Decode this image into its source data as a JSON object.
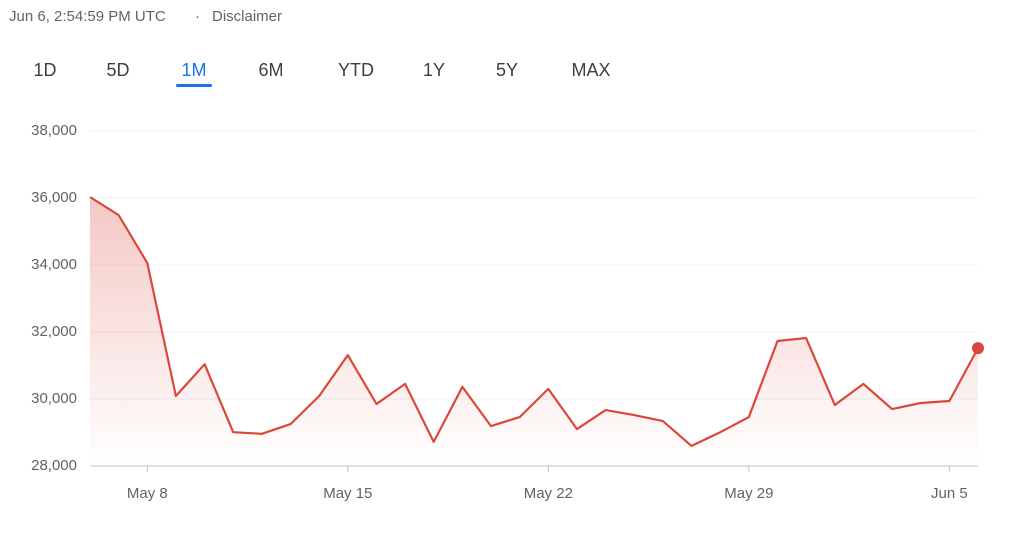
{
  "header": {
    "timestamp": "Jun 6, 2:54:59 PM UTC",
    "separator": "·",
    "disclaimer": "Disclaimer"
  },
  "ranges": {
    "options": [
      "1D",
      "5D",
      "1M",
      "6M",
      "YTD",
      "1Y",
      "5Y",
      "MAX"
    ],
    "selected_index": 2
  },
  "chart_data": {
    "type": "line",
    "color": "#d9483b",
    "x": [
      "May 6",
      "May 7",
      "May 8",
      "May 9",
      "May 10",
      "May 11",
      "May 12",
      "May 13",
      "May 14",
      "May 15",
      "May 16",
      "May 17",
      "May 18",
      "May 19",
      "May 20",
      "May 21",
      "May 22",
      "May 23",
      "May 24",
      "May 25",
      "May 26",
      "May 27",
      "May 28",
      "May 29",
      "May 30",
      "May 31",
      "Jun 1",
      "Jun 2",
      "Jun 3",
      "Jun 4",
      "Jun 5",
      "Jun 6"
    ],
    "values": [
      36030,
      35490,
      34060,
      30090,
      31040,
      29010,
      28960,
      29250,
      30090,
      31310,
      29850,
      30450,
      28720,
      30360,
      29190,
      29460,
      30300,
      29100,
      29670,
      29520,
      29340,
      28600,
      29010,
      29460,
      31730,
      31820,
      29820,
      30450,
      29700,
      29880,
      29940,
      31520
    ],
    "ylim": [
      28000,
      38000
    ],
    "yticks": [
      {
        "value": 28000,
        "label": "28,000"
      },
      {
        "value": 30000,
        "label": "30,000"
      },
      {
        "value": 32000,
        "label": "32,000"
      },
      {
        "value": 34000,
        "label": "34,000"
      },
      {
        "value": 36000,
        "label": "36,000"
      },
      {
        "value": 38000,
        "label": "38,000"
      }
    ],
    "xticks": [
      "May 8",
      "May 15",
      "May 22",
      "May 29",
      "Jun 5"
    ],
    "grid": true
  }
}
